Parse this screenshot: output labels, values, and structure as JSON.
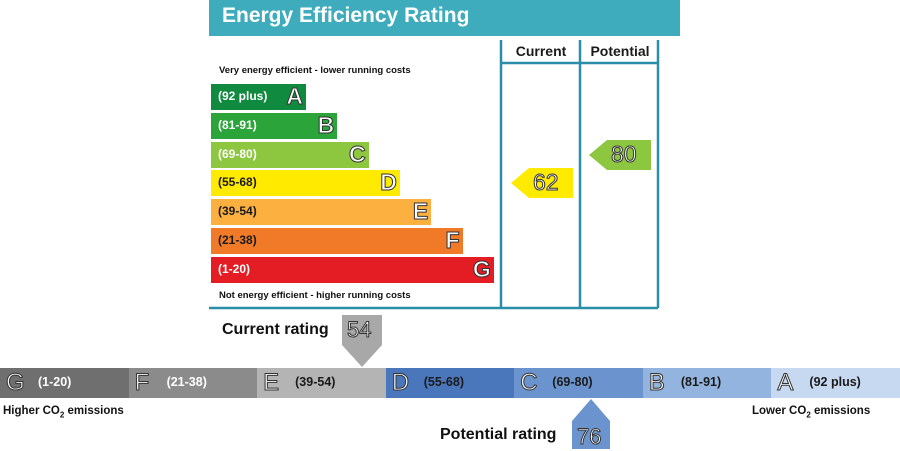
{
  "chart_data": [
    {
      "type": "bar",
      "title": "Energy Efficiency Rating",
      "top_caption": "Very energy efficient - lower running costs",
      "bottom_caption": "Not energy efficient - higher running costs",
      "columns": [
        "Current",
        "Potential"
      ],
      "bands": [
        {
          "letter": "A",
          "range": "(92 plus)",
          "color": "#108a3e"
        },
        {
          "letter": "B",
          "range": "(81-91)",
          "color": "#2ba53a"
        },
        {
          "letter": "C",
          "range": "(69-80)",
          "color": "#8dc63f"
        },
        {
          "letter": "D",
          "range": "(55-68)",
          "color": "#ffea00"
        },
        {
          "letter": "E",
          "range": "(39-54)",
          "color": "#fbb040"
        },
        {
          "letter": "F",
          "range": "(21-38)",
          "color": "#f07a28"
        },
        {
          "letter": "G",
          "range": "(1-20)",
          "color": "#e31d23"
        }
      ],
      "current": {
        "value": 62,
        "band": "D",
        "color": "#ffea00"
      },
      "potential": {
        "value": 80,
        "band": "C",
        "color": "#8dc63f"
      }
    },
    {
      "type": "bar",
      "title": "",
      "left_caption": "Higher CO2 emissions",
      "right_caption": "Lower CO2 emissions",
      "segments": [
        {
          "letter": "G",
          "range": "(1-20)",
          "color": "#6f6f6f"
        },
        {
          "letter": "F",
          "range": "(21-38)",
          "color": "#8b8b8b"
        },
        {
          "letter": "E",
          "range": "(39-54)",
          "color": "#b4b4b4"
        },
        {
          "letter": "D",
          "range": "(55-68)",
          "color": "#4a77bc"
        },
        {
          "letter": "C",
          "range": "(69-80)",
          "color": "#6b94cf"
        },
        {
          "letter": "B",
          "range": "(81-91)",
          "color": "#94b4e0"
        },
        {
          "letter": "A",
          "range": "(92 plus)",
          "color": "#c6d9f1"
        }
      ],
      "current_rating": {
        "label": "Current rating",
        "value": 54,
        "color": "#a8a8a8"
      },
      "potential_rating": {
        "label": "Potential rating",
        "value": 76,
        "color": "#6b94cf"
      }
    }
  ]
}
